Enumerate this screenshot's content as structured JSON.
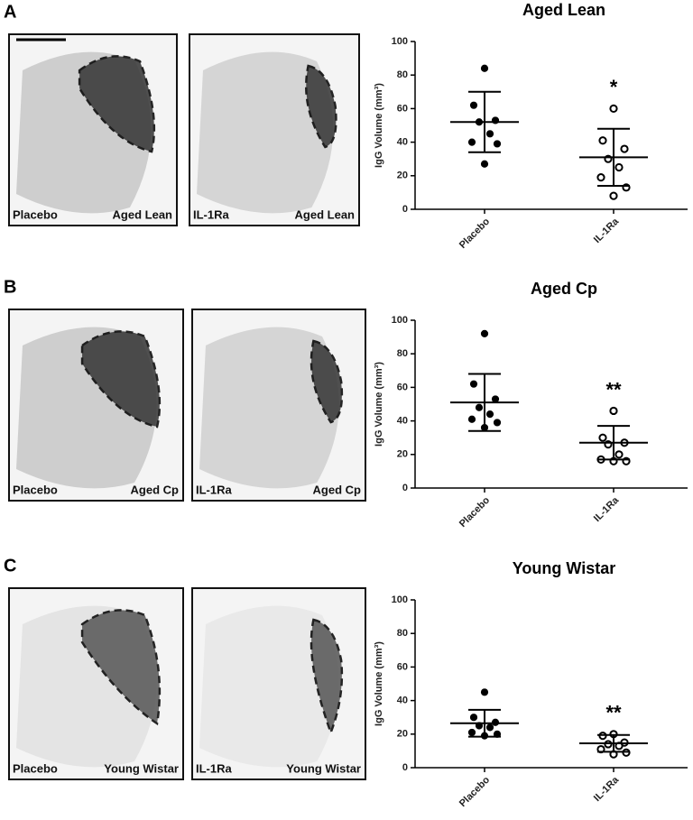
{
  "chart_data": [
    {
      "type": "dot",
      "title": "Aged Lean",
      "ylabel": "IgG Volume (mm³)",
      "categories": [
        "Placebo",
        "IL-1Ra"
      ],
      "values": [
        [
          84,
          62,
          53,
          52,
          45,
          40,
          39,
          27
        ],
        [
          60,
          41,
          36,
          30,
          25,
          19,
          13,
          8
        ]
      ],
      "means": [
        52,
        31
      ],
      "sds": [
        18,
        17
      ],
      "markers": [
        "filled",
        "open"
      ],
      "annotation": "*",
      "ylim": [
        0,
        100
      ],
      "yticks": [
        0,
        20,
        40,
        60,
        80,
        100
      ],
      "color": "#000000"
    },
    {
      "type": "dot",
      "title": "Aged Cp",
      "ylabel": "IgG Volume (mm³)",
      "categories": [
        "Placebo",
        "IL-1Ra"
      ],
      "values": [
        [
          92,
          62,
          53,
          48,
          44,
          41,
          39,
          36
        ],
        [
          46,
          30,
          27,
          26,
          20,
          17,
          16,
          16
        ]
      ],
      "means": [
        51,
        27
      ],
      "sds": [
        17,
        10
      ],
      "markers": [
        "filled",
        "open"
      ],
      "annotation": "**",
      "ylim": [
        0,
        100
      ],
      "yticks": [
        0,
        20,
        40,
        60,
        80,
        100
      ],
      "color": "#000000"
    },
    {
      "type": "dot",
      "title": "Young Wistar",
      "ylabel": "IgG Volume (mm³)",
      "categories": [
        "Placebo",
        "IL-1Ra"
      ],
      "values": [
        [
          45,
          30,
          27,
          25,
          24,
          21,
          20,
          19
        ],
        [
          20,
          19,
          15,
          14,
          13,
          11,
          9,
          8
        ]
      ],
      "means": [
        26.5,
        14.5
      ],
      "sds": [
        8,
        5
      ],
      "markers": [
        "filled",
        "open"
      ],
      "annotation": "**",
      "ylim": [
        0,
        100
      ],
      "yticks": [
        0,
        20,
        40,
        60,
        80,
        100
      ],
      "color": "#000000"
    }
  ],
  "panels": [
    {
      "label": "A",
      "images": [
        [
          "Placebo",
          "Aged Lean"
        ],
        [
          "IL-1Ra",
          "Aged Lean"
        ]
      ]
    },
    {
      "label": "B",
      "images": [
        [
          "Placebo",
          "Aged Cp"
        ],
        [
          "IL-1Ra",
          "Aged Cp"
        ]
      ]
    },
    {
      "label": "C",
      "images": [
        [
          "Placebo",
          "Young Wistar"
        ],
        [
          "IL-1Ra",
          "Young Wistar"
        ]
      ]
    }
  ]
}
